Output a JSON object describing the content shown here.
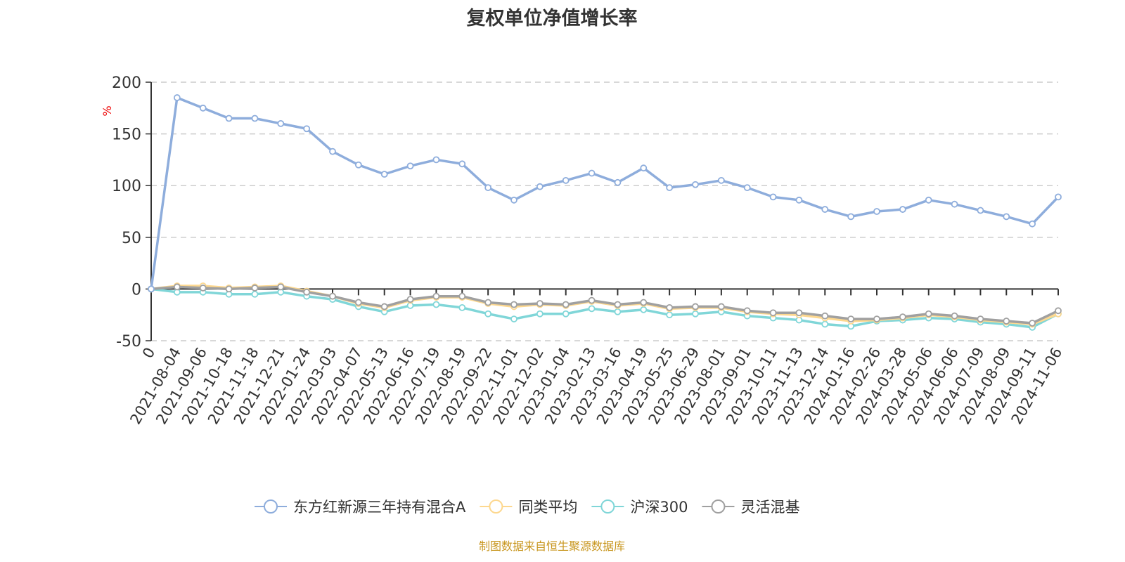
{
  "chart_data": {
    "type": "line",
    "title": "复权单位净值增长率",
    "ylabel": "%",
    "ylim": [
      -50,
      200
    ],
    "yticks": [
      -50,
      0,
      50,
      100,
      150,
      200
    ],
    "grid": true,
    "legend_position": "bottom",
    "categories": [
      "0",
      "2021-08-04",
      "2021-09-06",
      "2021-10-18",
      "2021-11-18",
      "2021-12-21",
      "2022-01-24",
      "2022-03-03",
      "2022-04-07",
      "2022-05-13",
      "2022-06-16",
      "2022-07-19",
      "2022-08-19",
      "2022-09-22",
      "2022-11-01",
      "2022-12-02",
      "2023-01-04",
      "2023-02-13",
      "2023-03-16",
      "2023-04-19",
      "2023-05-25",
      "2023-06-29",
      "2023-08-01",
      "2023-09-01",
      "2023-10-11",
      "2023-11-13",
      "2023-12-14",
      "2024-01-16",
      "2024-02-26",
      "2024-03-28",
      "2024-05-06",
      "2024-06-06",
      "2024-07-09",
      "2024-08-09",
      "2024-09-11",
      "2024-11-06"
    ],
    "series": [
      {
        "name": "东方红新源三年持有混合A",
        "color": "#8eaddc",
        "values": [
          0,
          185,
          175,
          165,
          165,
          160,
          155,
          133,
          120,
          111,
          119,
          125,
          121,
          98,
          86,
          99,
          105,
          112,
          103,
          117,
          98,
          101,
          105,
          98,
          89,
          86,
          77,
          70,
          75,
          77,
          86,
          82,
          76,
          70,
          63,
          89
        ]
      },
      {
        "name": "同类平均",
        "color": "#fdd88f",
        "values": [
          0,
          3,
          3,
          1,
          2,
          3,
          -2,
          -7,
          -14,
          -18,
          -11,
          -8,
          -8,
          -14,
          -17,
          -15,
          -16,
          -12,
          -16,
          -14,
          -19,
          -18,
          -18,
          -22,
          -24,
          -25,
          -28,
          -31,
          -30,
          -28,
          -25,
          -27,
          -30,
          -32,
          -34,
          -24
        ]
      },
      {
        "name": "沪深300",
        "color": "#80d6d8",
        "values": [
          0,
          -3,
          -3,
          -5,
          -5,
          -3,
          -7,
          -10,
          -17,
          -22,
          -16,
          -15,
          -18,
          -24,
          -29,
          -24,
          -24,
          -19,
          -22,
          -20,
          -25,
          -24,
          -22,
          -26,
          -28,
          -30,
          -34,
          -36,
          -31,
          -30,
          -28,
          -29,
          -32,
          -34,
          -37,
          -24
        ]
      },
      {
        "name": "灵活混基",
        "color": "#a0a0a0",
        "values": [
          0,
          2,
          1,
          0,
          1,
          2,
          -3,
          -7,
          -13,
          -17,
          -10,
          -7,
          -7,
          -13,
          -15,
          -14,
          -15,
          -11,
          -15,
          -13,
          -18,
          -17,
          -17,
          -21,
          -23,
          -23,
          -26,
          -29,
          -29,
          -27,
          -24,
          -26,
          -29,
          -31,
          -33,
          -21
        ]
      }
    ]
  },
  "source": "制图数据来自恒生聚源数据库"
}
